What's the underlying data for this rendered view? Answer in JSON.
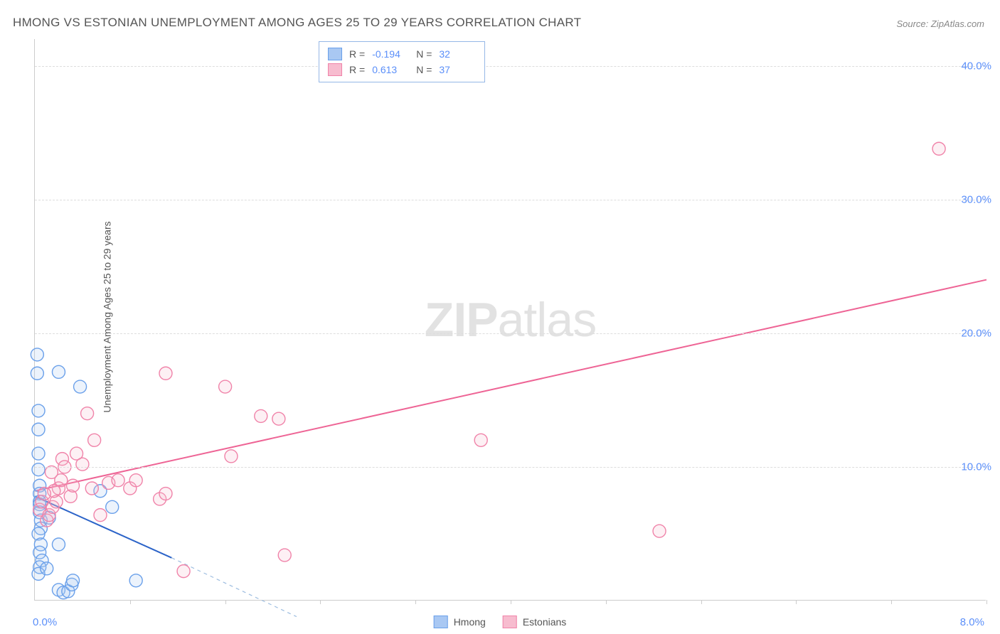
{
  "title": "HMONG VS ESTONIAN UNEMPLOYMENT AMONG AGES 25 TO 29 YEARS CORRELATION CHART",
  "source": "Source: ZipAtlas.com",
  "watermark_bold": "ZIP",
  "watermark_rest": "atlas",
  "ylabel": "Unemployment Among Ages 25 to 29 years",
  "chart": {
    "type": "scatter",
    "xlim": [
      0,
      8.0
    ],
    "ylim": [
      0,
      42.0
    ],
    "x_origin_label": "0.0%",
    "x_max_label": "8.0%",
    "y_ticks": [
      10.0,
      20.0,
      30.0,
      40.0
    ],
    "y_tick_labels": [
      "10.0%",
      "20.0%",
      "30.0%",
      "40.0%"
    ],
    "x_tick_positions": [
      0.8,
      1.6,
      2.4,
      3.2,
      4.0,
      4.8,
      5.6,
      6.4,
      7.2,
      8.0
    ],
    "grid_color": "#dddddd",
    "background_color": "#ffffff",
    "marker_radius": 9,
    "marker_stroke_width": 1.4,
    "marker_fill_opacity": 0.22,
    "line_width": 2.0,
    "legend_border_color": "#95b7e6",
    "series": [
      {
        "name": "Hmong",
        "color_stroke": "#6aa0ea",
        "color_fill": "#a9c8f3",
        "r_label": "R =",
        "r_value": "-0.194",
        "n_label": "N =",
        "n_value": "32",
        "regression": {
          "x1": 0.0,
          "y1": 7.8,
          "x2": 1.15,
          "y2": 3.2,
          "extrap_x2": 2.2,
          "extrap_y2": -1.2,
          "color": "#2b63c8",
          "dash_color": "#9dbde0"
        },
        "points": [
          [
            0.02,
            18.4
          ],
          [
            0.02,
            17.0
          ],
          [
            0.03,
            14.2
          ],
          [
            0.03,
            12.8
          ],
          [
            0.03,
            11.0
          ],
          [
            0.03,
            9.8
          ],
          [
            0.04,
            8.6
          ],
          [
            0.04,
            8.0
          ],
          [
            0.04,
            7.4
          ],
          [
            0.04,
            7.2
          ],
          [
            0.04,
            6.6
          ],
          [
            0.05,
            6.0
          ],
          [
            0.05,
            5.4
          ],
          [
            0.03,
            5.0
          ],
          [
            0.05,
            4.2
          ],
          [
            0.04,
            3.6
          ],
          [
            0.06,
            3.0
          ],
          [
            0.04,
            2.5
          ],
          [
            0.03,
            2.0
          ],
          [
            0.1,
            2.4
          ],
          [
            0.2,
            0.8
          ],
          [
            0.24,
            0.6
          ],
          [
            0.28,
            0.7
          ],
          [
            0.31,
            1.2
          ],
          [
            0.32,
            1.5
          ],
          [
            0.2,
            17.1
          ],
          [
            0.38,
            16.0
          ],
          [
            0.55,
            8.2
          ],
          [
            0.65,
            7.0
          ],
          [
            0.85,
            1.5
          ],
          [
            0.2,
            4.2
          ],
          [
            0.12,
            6.2
          ]
        ]
      },
      {
        "name": "Estonians",
        "color_stroke": "#f083a9",
        "color_fill": "#f7bccf",
        "r_label": "R =",
        "r_value": "0.613",
        "n_label": "N =",
        "n_value": "37",
        "regression": {
          "x1": 0.0,
          "y1": 8.2,
          "x2": 8.0,
          "y2": 24.0,
          "color": "#ee6495"
        },
        "points": [
          [
            0.04,
            6.8
          ],
          [
            0.06,
            7.4
          ],
          [
            0.1,
            6.0
          ],
          [
            0.12,
            6.4
          ],
          [
            0.15,
            7.0
          ],
          [
            0.18,
            7.4
          ],
          [
            0.2,
            8.4
          ],
          [
            0.22,
            9.0
          ],
          [
            0.23,
            10.6
          ],
          [
            0.25,
            10.0
          ],
          [
            0.3,
            7.8
          ],
          [
            0.32,
            8.6
          ],
          [
            0.35,
            11.0
          ],
          [
            0.4,
            10.2
          ],
          [
            0.44,
            14.0
          ],
          [
            0.5,
            12.0
          ],
          [
            0.55,
            6.4
          ],
          [
            0.62,
            8.8
          ],
          [
            0.7,
            9.0
          ],
          [
            0.8,
            8.4
          ],
          [
            0.85,
            9.0
          ],
          [
            1.05,
            7.6
          ],
          [
            1.1,
            17.0
          ],
          [
            1.1,
            8.0
          ],
          [
            1.25,
            2.2
          ],
          [
            1.6,
            16.0
          ],
          [
            1.65,
            10.8
          ],
          [
            1.9,
            13.8
          ],
          [
            2.05,
            13.6
          ],
          [
            2.1,
            3.4
          ],
          [
            3.75,
            12.0
          ],
          [
            5.25,
            5.2
          ],
          [
            7.6,
            33.8
          ],
          [
            0.14,
            9.6
          ],
          [
            0.16,
            8.2
          ],
          [
            0.08,
            8.0
          ],
          [
            0.48,
            8.4
          ]
        ]
      }
    ]
  },
  "stats_legend": {
    "rows": [
      {
        "swatch_fill": "#a9c8f3",
        "swatch_stroke": "#6aa0ea",
        "r_label": "R =",
        "r_value": "-0.194",
        "n_label": "N =",
        "n_value": "32"
      },
      {
        "swatch_fill": "#f7bccf",
        "swatch_stroke": "#f083a9",
        "r_label": "R =",
        "r_value": "0.613",
        "n_label": "N =",
        "n_value": "37"
      }
    ]
  },
  "bottom_legend": {
    "items": [
      {
        "swatch_fill": "#a9c8f3",
        "swatch_stroke": "#6aa0ea",
        "label": "Hmong"
      },
      {
        "swatch_fill": "#f7bccf",
        "swatch_stroke": "#f083a9",
        "label": "Estonians"
      }
    ]
  }
}
